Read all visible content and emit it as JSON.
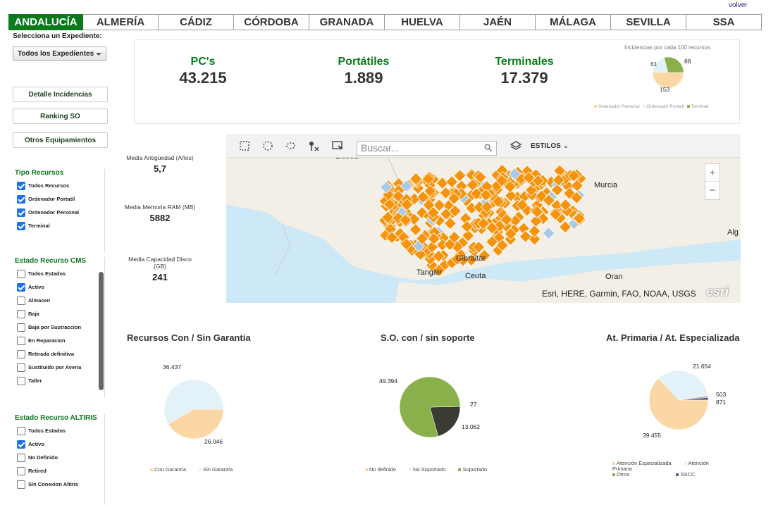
{
  "header": {
    "tabs": [
      {
        "label": "ANDALUCÍA",
        "active": true
      },
      {
        "label": "ALMERÍA"
      },
      {
        "label": "CÁDIZ"
      },
      {
        "label": "CÓRDOBA"
      },
      {
        "label": "GRANADA"
      },
      {
        "label": "HUELVA"
      },
      {
        "label": "JAÉN"
      },
      {
        "label": "MÁLAGA"
      },
      {
        "label": "SEVILLA"
      },
      {
        "label": "SSA"
      }
    ],
    "back_link": "volver"
  },
  "sidebar": {
    "expediente_label": "Selecciona un Expediente:",
    "expediente_value": "Todos los Expedientes",
    "buttons": [
      "Detalle Incidencias",
      "Ranking SO",
      "Otros Equipamientos"
    ],
    "tipo_recursos": {
      "title": "Tipo Recursos",
      "items": [
        {
          "label": "Todos Recursos",
          "checked": true
        },
        {
          "label": "Ordenador Portatil",
          "checked": true
        },
        {
          "label": "Ordenador Personal",
          "checked": true
        },
        {
          "label": "Terminal",
          "checked": true
        }
      ]
    },
    "estado_cms": {
      "title": "Estado Recurso CMS",
      "items": [
        {
          "label": "Todos Estados",
          "checked": false
        },
        {
          "label": "Activo",
          "checked": true
        },
        {
          "label": "Almacen",
          "checked": false
        },
        {
          "label": "Baja",
          "checked": false
        },
        {
          "label": "Baja por Sustraccion",
          "checked": false
        },
        {
          "label": "En Reparacion",
          "checked": false
        },
        {
          "label": "Retirada definitiva",
          "checked": false
        },
        {
          "label": "Sustituido por Averia",
          "checked": false
        },
        {
          "label": "Taller",
          "checked": false
        }
      ]
    },
    "estado_altiris": {
      "title": "Estado Recurso ALTIRIS",
      "items": [
        {
          "label": "Todos Estados",
          "checked": false
        },
        {
          "label": "Activo",
          "checked": true
        },
        {
          "label": "No Definido",
          "checked": false
        },
        {
          "label": "Retired",
          "checked": false
        },
        {
          "label": "Sin Conexion Altiris",
          "checked": false
        }
      ]
    }
  },
  "kpis": [
    {
      "label": "PC's",
      "value": "43.215"
    },
    {
      "label": "Portátiles",
      "value": "1.889"
    },
    {
      "label": "Terminales",
      "value": "17.379"
    }
  ],
  "incidencias": {
    "title": "Incidencias por cada 100 recursos",
    "values": [
      "61",
      "88",
      "153"
    ],
    "legend": [
      "Ordenador Personal",
      "Ordenador Portatil",
      "Terminal"
    ]
  },
  "stats": [
    {
      "label": "Media Antigüedad (Años)",
      "value": "5,7"
    },
    {
      "label": "Media Memoria RAM (MB)",
      "value": "5882"
    },
    {
      "label": "Media Capacidad Disco (GB)",
      "value": "241"
    }
  ],
  "map": {
    "search_placeholder": "Buscar...",
    "styles_label": "ESTILOS",
    "zoom_in": "+",
    "zoom_out": "−",
    "attribution": "Esri, HERE, Garmin, FAO, NOAA, USGS",
    "logo": "esri",
    "cities": [
      "Lisboa",
      "Murcia",
      "Tangier",
      "Ceuta",
      "Gibraltar",
      "Oran",
      "Alg"
    ]
  },
  "charts": [
    {
      "title": "Recursos Con / Sin Garantía",
      "labels": [
        "36.437",
        "26.046"
      ],
      "legend": [
        "Con Garantía",
        "Sin Garantía"
      ]
    },
    {
      "title": "S.O. con / sin soporte",
      "labels": [
        "49.394",
        "27",
        "13.062"
      ],
      "legend": [
        "No definido",
        "No Soportado",
        "Soportado"
      ]
    },
    {
      "title": "At. Primaria / At. Especializada",
      "labels": [
        "21.654",
        "503",
        "871",
        "39.455"
      ],
      "legend": [
        "Atención Especializada",
        "Atención Primaria",
        "Otros",
        "SSCC"
      ]
    }
  ],
  "chart_data": [
    {
      "type": "pie",
      "title": "Recursos Con / Sin Garantía",
      "categories": [
        "Con Garantía",
        "Sin Garantía"
      ],
      "values": [
        26046,
        36437
      ]
    },
    {
      "type": "pie",
      "title": "S.O. con / sin soporte",
      "categories": [
        "No definido",
        "No Soportado",
        "Soportado"
      ],
      "values": [
        27,
        13062,
        49394
      ]
    },
    {
      "type": "pie",
      "title": "At. Primaria / At. Especializada",
      "categories": [
        "Atención Especializada",
        "Atención Primaria",
        "Otros",
        "SSCC"
      ],
      "values": [
        39455,
        21654,
        503,
        871
      ]
    },
    {
      "type": "pie",
      "title": "Incidencias por cada 100 recursos",
      "categories": [
        "Ordenador Personal",
        "Ordenador Portatil",
        "Terminal"
      ],
      "values": [
        153,
        61,
        88
      ]
    }
  ],
  "colors": {
    "accent": "#0b7a1d",
    "marker": "#f5930c",
    "peach": "#fcd7a6",
    "light_blue": "#e3f2f8",
    "olive": "#8ab04c",
    "dark": "#3b3b33",
    "purple": "#6a55a3"
  }
}
